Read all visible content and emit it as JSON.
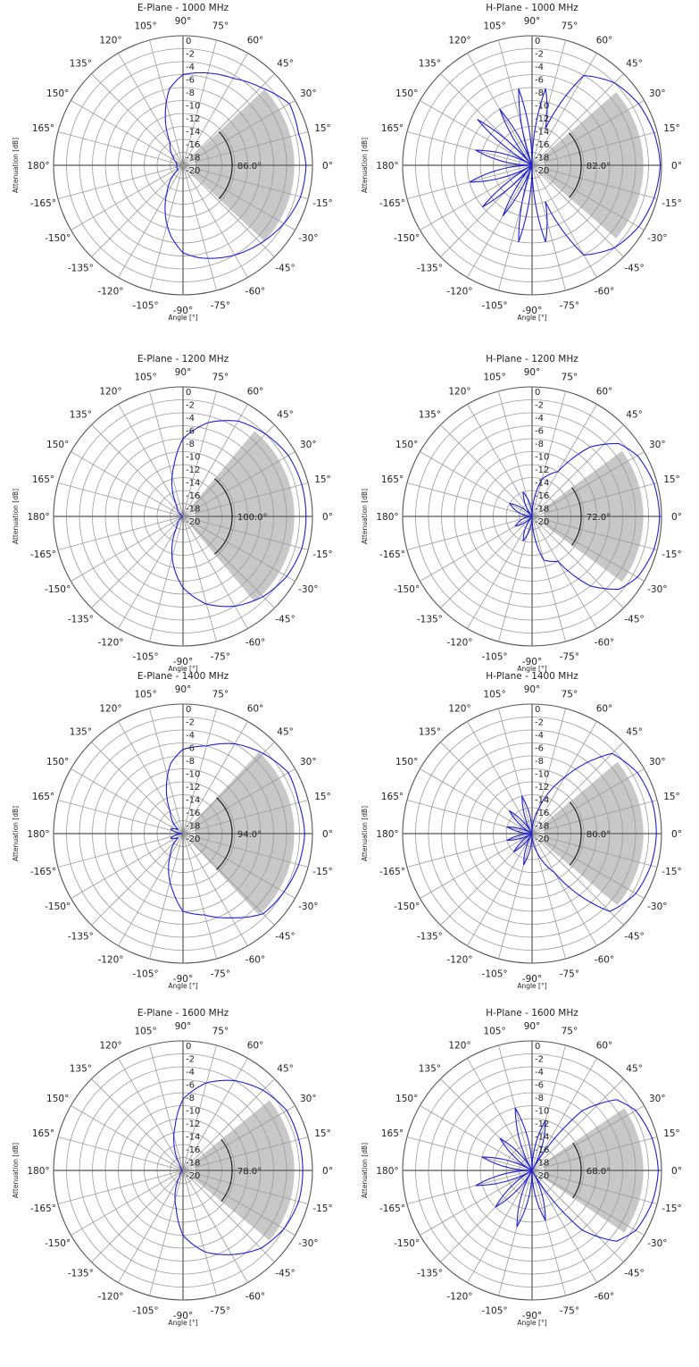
{
  "chart_data": [
    {
      "type": "polar",
      "title": "E-Plane - 1000 MHz",
      "ylabel": "Attenuation [dB]",
      "xlabel": "Angle [°]",
      "beamwidth_deg": 86.0,
      "beamwidth_label": "86.0°",
      "angle_labels": [
        "0°",
        "15°",
        "30°",
        "45°",
        "60°",
        "75°",
        "90°",
        "105°",
        "120°",
        "135°",
        "150°",
        "165°",
        "180°",
        "-165°",
        "-150°",
        "-135°",
        "-120°",
        "-105°",
        "-90°",
        "-75°",
        "-60°",
        "-45°",
        "-30°",
        "-15°"
      ],
      "radial_labels": [
        "0",
        "-2",
        "-4",
        "-6",
        "-8",
        "-10",
        "-12",
        "-14",
        "-16",
        "-18",
        "-20"
      ],
      "rlim": [
        -20,
        0
      ],
      "angles": [
        -180,
        -160,
        -140,
        -120,
        -100,
        -90,
        -80,
        -60,
        -45,
        -30,
        -15,
        0,
        15,
        30,
        45,
        60,
        80,
        90,
        100,
        120,
        140,
        160,
        180
      ],
      "values": [
        -19,
        -19,
        -19,
        -15,
        -9,
        -6.5,
        -5.5,
        -4,
        -3,
        -2,
        -1.2,
        -1,
        -1.5,
        -1,
        -3,
        -4.5,
        -5.5,
        -6,
        -8,
        -16,
        -18,
        -19,
        -19
      ]
    },
    {
      "type": "polar",
      "title": "H-Plane - 1000 MHz",
      "ylabel": "Attenuation [dB]",
      "xlabel": "Angle [°]",
      "beamwidth_deg": 82.0,
      "beamwidth_label": "82.0°",
      "angle_labels": [
        "0°",
        "15°",
        "30°",
        "45°",
        "60°",
        "75°",
        "90°",
        "105°",
        "120°",
        "135°",
        "150°",
        "165°",
        "180°",
        "-165°",
        "-150°",
        "-135°",
        "-120°",
        "-105°",
        "-90°",
        "-75°",
        "-60°",
        "-45°",
        "-30°",
        "-15°"
      ],
      "radial_labels": [
        "0",
        "-2",
        "-4",
        "-6",
        "-8",
        "-10",
        "-12",
        "-14",
        "-16",
        "-18",
        "-20"
      ],
      "rlim": [
        -20,
        0
      ],
      "angles": [
        -180,
        -165,
        -150,
        -140,
        -130,
        -120,
        -110,
        -100,
        -90,
        -80,
        -70,
        -60,
        -45,
        -30,
        -15,
        0,
        15,
        30,
        45,
        60,
        70,
        80,
        90,
        100,
        110,
        120,
        130,
        140,
        150,
        165,
        180
      ],
      "values": [
        -20,
        -10,
        -20,
        -10,
        -20,
        -11,
        -20,
        -8,
        -20,
        -8,
        -14,
        -4,
        -2,
        -1,
        -0.5,
        -0.2,
        -0.5,
        -1,
        -2,
        -4,
        -14,
        -8,
        -20,
        -8,
        -20,
        -10,
        -20,
        -9,
        -20,
        -11,
        -20
      ]
    },
    {
      "type": "polar",
      "title": "E-Plane - 1200 MHz",
      "ylabel": "Attenuation [dB]",
      "xlabel": "Angle [°]",
      "beamwidth_deg": 100.0,
      "beamwidth_label": "100.0°",
      "angle_labels": [
        "0°",
        "15°",
        "30°",
        "45°",
        "60°",
        "75°",
        "90°",
        "105°",
        "120°",
        "135°",
        "150°",
        "165°",
        "180°",
        "-165°",
        "-150°",
        "-135°",
        "-120°",
        "-105°",
        "-90°",
        "-75°",
        "-60°",
        "-45°",
        "-30°",
        "-15°"
      ],
      "radial_labels": [
        "0",
        "-2",
        "-4",
        "-6",
        "-8",
        "-10",
        "-12",
        "-14",
        "-16",
        "-18",
        "-20"
      ],
      "rlim": [
        -20,
        0
      ],
      "angles": [
        -180,
        -150,
        -120,
        -100,
        -90,
        -75,
        -60,
        -45,
        -30,
        -15,
        0,
        15,
        30,
        45,
        60,
        75,
        90,
        100,
        120,
        150,
        180
      ],
      "values": [
        -20,
        -20,
        -18,
        -12,
        -9,
        -6,
        -4,
        -2.5,
        -1.5,
        -1,
        -1,
        -1,
        -1.2,
        -2,
        -3,
        -5,
        -8,
        -12,
        -18,
        -20,
        -20
      ]
    },
    {
      "type": "polar",
      "title": "H-Plane - 1200 MHz",
      "ylabel": "Attenuation [dB]",
      "xlabel": "Angle [°]",
      "beamwidth_deg": 72.0,
      "beamwidth_label": "72.0°",
      "angle_labels": [
        "0°",
        "15°",
        "30°",
        "45°",
        "60°",
        "75°",
        "90°",
        "105°",
        "120°",
        "135°",
        "150°",
        "165°",
        "180°",
        "-165°",
        "-150°",
        "-135°",
        "-120°",
        "-105°",
        "-90°",
        "-75°",
        "-60°",
        "-45°",
        "-30°",
        "-15°"
      ],
      "radial_labels": [
        "0",
        "-2",
        "-4",
        "-6",
        "-8",
        "-10",
        "-12",
        "-14",
        "-16",
        "-18",
        "-20"
      ],
      "rlim": [
        -20,
        0
      ],
      "angles": [
        -180,
        -150,
        -130,
        -110,
        -90,
        -75,
        -60,
        -50,
        -40,
        -30,
        -15,
        0,
        15,
        30,
        40,
        50,
        60,
        75,
        90,
        110,
        130,
        150,
        180
      ],
      "values": [
        -20,
        -17,
        -20,
        -16,
        -20,
        -13,
        -12,
        -6,
        -2.5,
        -1.2,
        -0.5,
        -0.3,
        -0.5,
        -1.2,
        -2.5,
        -6,
        -12,
        -14,
        -20,
        -16,
        -20,
        -16,
        -20
      ]
    },
    {
      "type": "polar",
      "title": "E-Plane - 1400 MHz",
      "ylabel": "Attenuation [dB]",
      "xlabel": "Angle [°]",
      "beamwidth_deg": 94.0,
      "beamwidth_label": "94.0°",
      "angle_labels": [
        "0°",
        "15°",
        "30°",
        "45°",
        "60°",
        "75°",
        "90°",
        "105°",
        "120°",
        "135°",
        "150°",
        "165°",
        "180°",
        "-165°",
        "-150°",
        "-135°",
        "-120°",
        "-105°",
        "-90°",
        "-75°",
        "-60°",
        "-45°",
        "-30°",
        "-15°"
      ],
      "radial_labels": [
        "0",
        "-2",
        "-4",
        "-6",
        "-8",
        "-10",
        "-12",
        "-14",
        "-16",
        "-18",
        "-20"
      ],
      "rlim": [
        -20,
        0
      ],
      "angles": [
        -180,
        -160,
        -140,
        -120,
        -100,
        -90,
        -75,
        -60,
        -45,
        -30,
        -15,
        0,
        15,
        30,
        45,
        60,
        75,
        90,
        100,
        120,
        140,
        160,
        180
      ],
      "values": [
        -20,
        -18,
        -19,
        -16,
        -11,
        -8,
        -7,
        -5,
        -2.5,
        -2,
        -1.5,
        -1.2,
        -1.5,
        -1.2,
        -2.5,
        -4,
        -6,
        -7,
        -9,
        -16,
        -19,
        -18,
        -20
      ]
    },
    {
      "type": "polar",
      "title": "H-Plane - 1400 MHz",
      "ylabel": "Attenuation [dB]",
      "xlabel": "Angle [°]",
      "beamwidth_deg": 80.0,
      "beamwidth_label": "80.0°",
      "angle_labels": [
        "0°",
        "15°",
        "30°",
        "45°",
        "60°",
        "75°",
        "90°",
        "105°",
        "120°",
        "135°",
        "150°",
        "165°",
        "180°",
        "-165°",
        "-150°",
        "-135°",
        "-120°",
        "-105°",
        "-90°",
        "-75°",
        "-60°",
        "-45°",
        "-30°",
        "-15°"
      ],
      "radial_labels": [
        "0",
        "-2",
        "-4",
        "-6",
        "-8",
        "-10",
        "-12",
        "-14",
        "-16",
        "-18",
        "-20"
      ],
      "rlim": [
        -20,
        0
      ],
      "angles": [
        -180,
        -165,
        -150,
        -135,
        -120,
        -105,
        -90,
        -75,
        -60,
        -45,
        -30,
        -15,
        0,
        15,
        30,
        45,
        60,
        75,
        90,
        105,
        120,
        135,
        150,
        165,
        180
      ],
      "values": [
        -20,
        -16,
        -20,
        -16,
        -20,
        -15,
        -20,
        -17,
        -13,
        -3,
        -1.5,
        -1,
        -0.8,
        -0.8,
        -1.2,
        -2.5,
        -10,
        -16,
        -20,
        -14,
        -20,
        -15,
        -20,
        -16,
        -20
      ]
    },
    {
      "type": "polar",
      "title": "E-Plane - 1600 MHz",
      "ylabel": "Attenuation [dB]",
      "xlabel": "Angle [°]",
      "beamwidth_deg": 78.0,
      "beamwidth_label": "78.0°",
      "angle_labels": [
        "0°",
        "15°",
        "30°",
        "45°",
        "60°",
        "75°",
        "90°",
        "105°",
        "120°",
        "135°",
        "150°",
        "165°",
        "180°",
        "-165°",
        "-150°",
        "-135°",
        "-120°",
        "-105°",
        "-90°",
        "-75°",
        "-60°",
        "-45°",
        "-30°",
        "-15°"
      ],
      "radial_labels": [
        "0",
        "-2",
        "-4",
        "-6",
        "-8",
        "-10",
        "-12",
        "-14",
        "-16",
        "-18",
        "-20"
      ],
      "rlim": [
        -20,
        0
      ],
      "angles": [
        -180,
        -150,
        -120,
        -100,
        -90,
        -75,
        -60,
        -45,
        -30,
        -15,
        0,
        15,
        30,
        45,
        60,
        75,
        90,
        100,
        120,
        150,
        180
      ],
      "values": [
        -20,
        -20,
        -19,
        -14,
        -10,
        -7,
        -5,
        -3,
        -2,
        -1.5,
        -1.5,
        -1.5,
        -1.5,
        -2.5,
        -4,
        -6,
        -9,
        -13,
        -19,
        -20,
        -20
      ]
    },
    {
      "type": "polar",
      "title": "H-Plane - 1600 MHz",
      "ylabel": "Attenuation [dB]",
      "xlabel": "Angle [°]",
      "beamwidth_deg": 68.0,
      "beamwidth_label": "68.0°",
      "angle_labels": [
        "0°",
        "15°",
        "30°",
        "45°",
        "60°",
        "75°",
        "90°",
        "105°",
        "120°",
        "135°",
        "150°",
        "165°",
        "180°",
        "-165°",
        "-150°",
        "-135°",
        "-120°",
        "-105°",
        "-90°",
        "-75°",
        "-60°",
        "-45°",
        "-30°",
        "-15°"
      ],
      "radial_labels": [
        "0",
        "-2",
        "-4",
        "-6",
        "-8",
        "-10",
        "-12",
        "-14",
        "-16",
        "-18",
        "-20"
      ],
      "rlim": [
        -20,
        0
      ],
      "angles": [
        -180,
        -165,
        -150,
        -135,
        -120,
        -105,
        -90,
        -75,
        -60,
        -50,
        -40,
        -30,
        -15,
        0,
        15,
        30,
        40,
        50,
        60,
        75,
        90,
        105,
        120,
        135,
        150,
        165,
        180
      ],
      "values": [
        -20,
        -11,
        -20,
        -12,
        -20,
        -11,
        -20,
        -12,
        -20,
        -8,
        -3,
        -1.5,
        -0.8,
        -0.5,
        -0.8,
        -1.5,
        -3,
        -8,
        -20,
        -12,
        -20,
        -10,
        -20,
        -13,
        -20,
        -12,
        -20
      ]
    }
  ]
}
